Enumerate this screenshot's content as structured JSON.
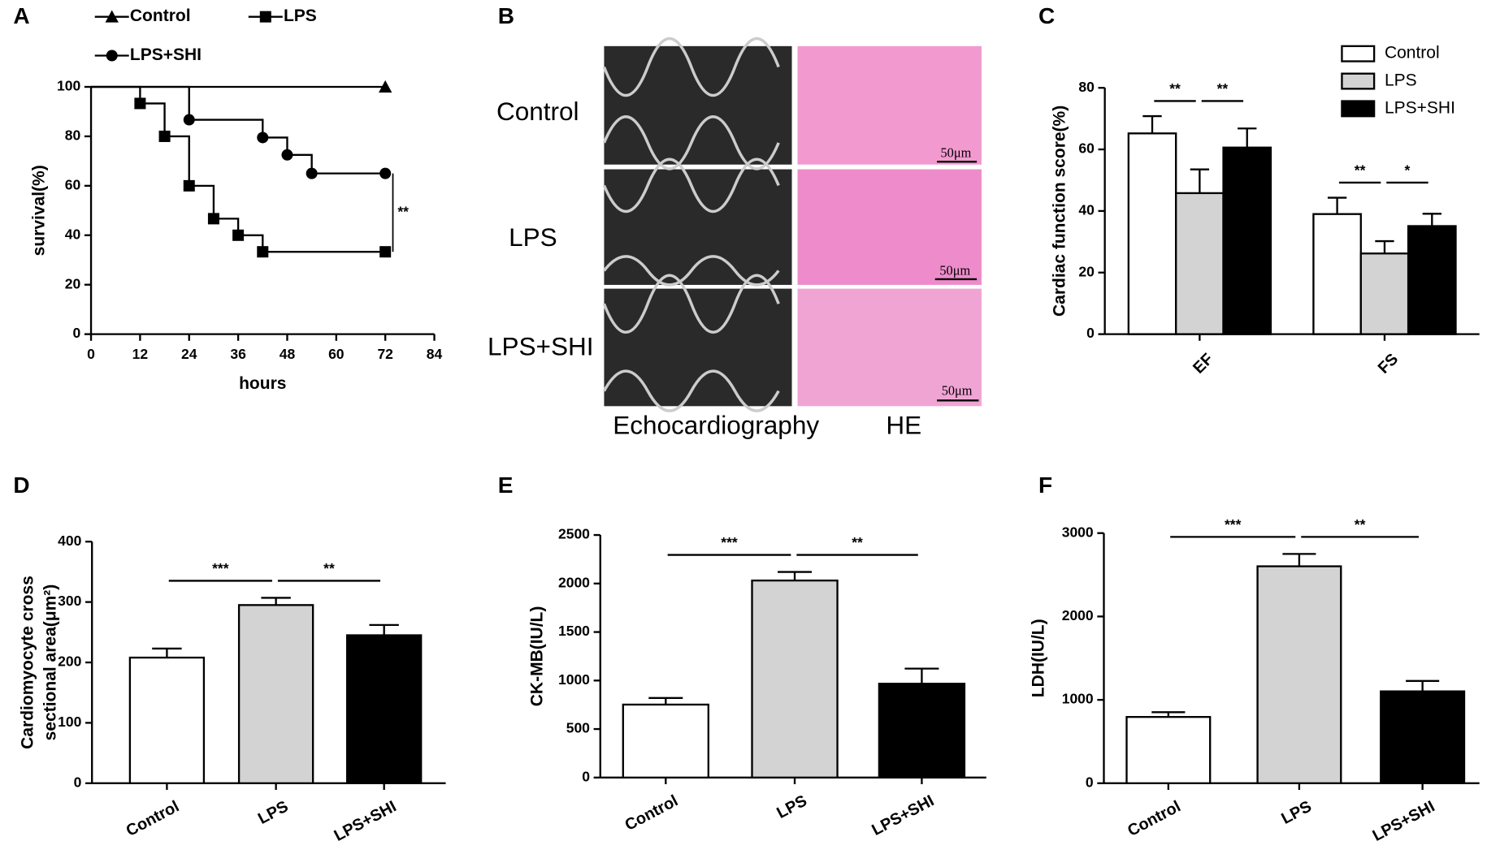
{
  "panel_b": {
    "panel": "B",
    "rows": [
      "Control",
      "LPS",
      "LPS+SHI"
    ],
    "columns": [
      "Echocardiography",
      "HE"
    ],
    "scale_bar": "50μm"
  },
  "chart_data": [
    {
      "type": "line",
      "panel": "A",
      "xlabel": "hours",
      "ylabel": "survival(%)",
      "xlim": [
        0,
        84
      ],
      "xticks": [
        0,
        12,
        24,
        36,
        48,
        60,
        72,
        84
      ],
      "ylim": [
        0,
        100
      ],
      "yticks": [
        0,
        20,
        40,
        60,
        80,
        100
      ],
      "step": true,
      "significance": "**",
      "series": [
        {
          "name": "Control",
          "marker": "triangle",
          "color": "#000000",
          "x": [
            0,
            72
          ],
          "values": [
            100,
            100
          ]
        },
        {
          "name": "LPS",
          "marker": "square",
          "color": "#000000",
          "x": [
            0,
            12,
            18,
            24,
            30,
            36,
            42,
            72
          ],
          "values": [
            100,
            93.3,
            80,
            60,
            46.7,
            40,
            33.3,
            33.3
          ]
        },
        {
          "name": "LPS+SHI",
          "marker": "circle",
          "color": "#000000",
          "x": [
            0,
            24,
            42,
            48,
            54,
            72
          ],
          "values": [
            100,
            86.7,
            79.5,
            72.5,
            65,
            65
          ]
        }
      ]
    },
    {
      "type": "grouped-bar",
      "panel": "C",
      "ylabel": "Cardiac function score(%)",
      "categories": [
        "EF",
        "FS"
      ],
      "ylim": [
        0,
        80
      ],
      "yticks": [
        0,
        20,
        40,
        60,
        80
      ],
      "legend": "upper right",
      "significance": [
        [
          "**",
          "**"
        ],
        [
          "**",
          "*"
        ]
      ],
      "series": [
        {
          "name": "Control",
          "color": "#ffffff",
          "values": [
            65.2,
            39
          ],
          "errors": [
            5.6,
            5.3
          ]
        },
        {
          "name": "LPS",
          "color": "#d3d3d3",
          "values": [
            45.8,
            26.2
          ],
          "errors": [
            7.7,
            4
          ]
        },
        {
          "name": "LPS+SHI",
          "color": "#000000",
          "values": [
            60.6,
            35.1
          ],
          "errors": [
            6.2,
            4
          ]
        }
      ]
    },
    {
      "type": "bar",
      "panel": "D",
      "ylabel": [
        "Cardiomyocyte cross",
        "sectional area(μm²)"
      ],
      "categories": [
        "Control",
        "LPS",
        "LPS+SHI"
      ],
      "values": [
        208,
        295,
        245
      ],
      "errors": [
        15,
        12,
        17
      ],
      "colors": [
        "#ffffff",
        "#d3d3d3",
        "#000000"
      ],
      "ylim": [
        0,
        400
      ],
      "yticks": [
        0,
        100,
        200,
        300,
        400
      ],
      "significance": [
        "***",
        "**"
      ]
    },
    {
      "type": "bar",
      "panel": "E",
      "ylabel": "CK-MB(IU/L)",
      "categories": [
        "Control",
        "LPS",
        "LPS+SHI"
      ],
      "values": [
        752,
        2031,
        967
      ],
      "errors": [
        68,
        88,
        156
      ],
      "colors": [
        "#ffffff",
        "#d3d3d3",
        "#000000"
      ],
      "ylim": [
        0,
        2500
      ],
      "yticks": [
        0,
        500,
        1000,
        1500,
        2000,
        2500
      ],
      "significance": [
        "***",
        "**"
      ]
    },
    {
      "type": "bar",
      "panel": "F",
      "ylabel": "LDH(IU/L)",
      "categories": [
        "Control",
        "LPS",
        "LPS+SHI"
      ],
      "values": [
        795,
        2602,
        1102
      ],
      "errors": [
        57,
        148,
        125
      ],
      "colors": [
        "#ffffff",
        "#d3d3d3",
        "#000000"
      ],
      "ylim": [
        0,
        3000
      ],
      "yticks": [
        0,
        1000,
        2000,
        3000
      ],
      "significance": [
        "***",
        "**"
      ]
    }
  ]
}
